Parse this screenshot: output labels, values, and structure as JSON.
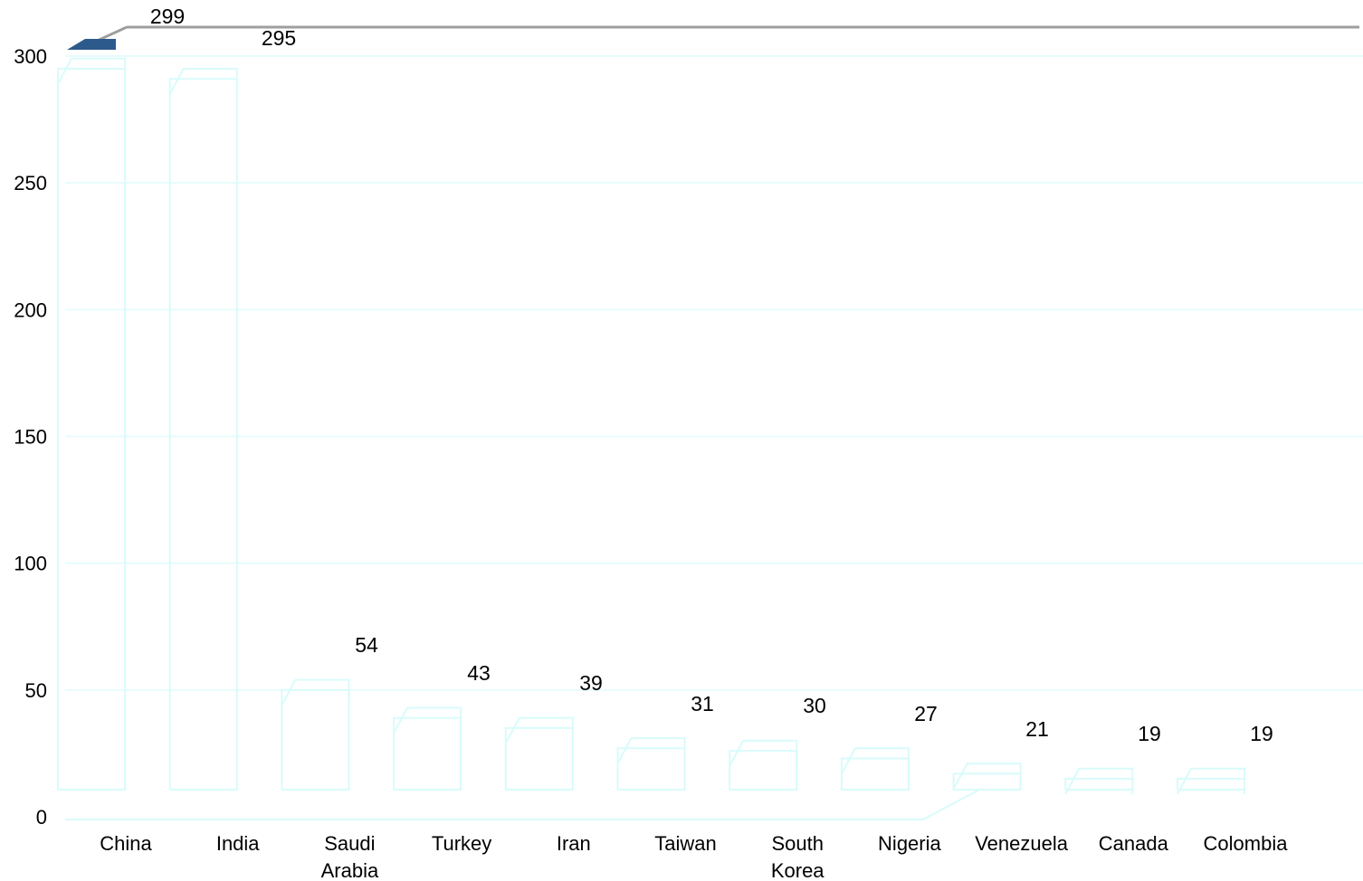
{
  "chart_data": {
    "type": "bar",
    "categories": [
      "China",
      "India",
      "Saudi Arabia",
      "Turkey",
      "Iran",
      "Taiwan",
      "South Korea",
      "Nigeria",
      "Venezuela",
      "Canada",
      "Colombia"
    ],
    "category_lines": [
      [
        "China"
      ],
      [
        "India"
      ],
      [
        "Saudi",
        "Arabia"
      ],
      [
        "Turkey"
      ],
      [
        "Iran"
      ],
      [
        "Taiwan"
      ],
      [
        "South",
        "Korea"
      ],
      [
        "Nigeria"
      ],
      [
        "Venezuela"
      ],
      [
        "Canada"
      ],
      [
        "Colombia"
      ]
    ],
    "values": [
      299,
      295,
      54,
      43,
      39,
      31,
      30,
      27,
      21,
      19,
      19
    ],
    "ylim": [
      0,
      300
    ],
    "yticks": [
      "0",
      "50",
      "100",
      "150",
      "200",
      "250",
      "300"
    ],
    "title": "",
    "xlabel": "",
    "ylabel": "",
    "grid": true,
    "three_d": true,
    "colors": {
      "bar_top": "#2d5a8c",
      "grid": "#e8fbfb",
      "axis": "#9e9e9e",
      "bar_outline": "#d9fbfb"
    }
  }
}
